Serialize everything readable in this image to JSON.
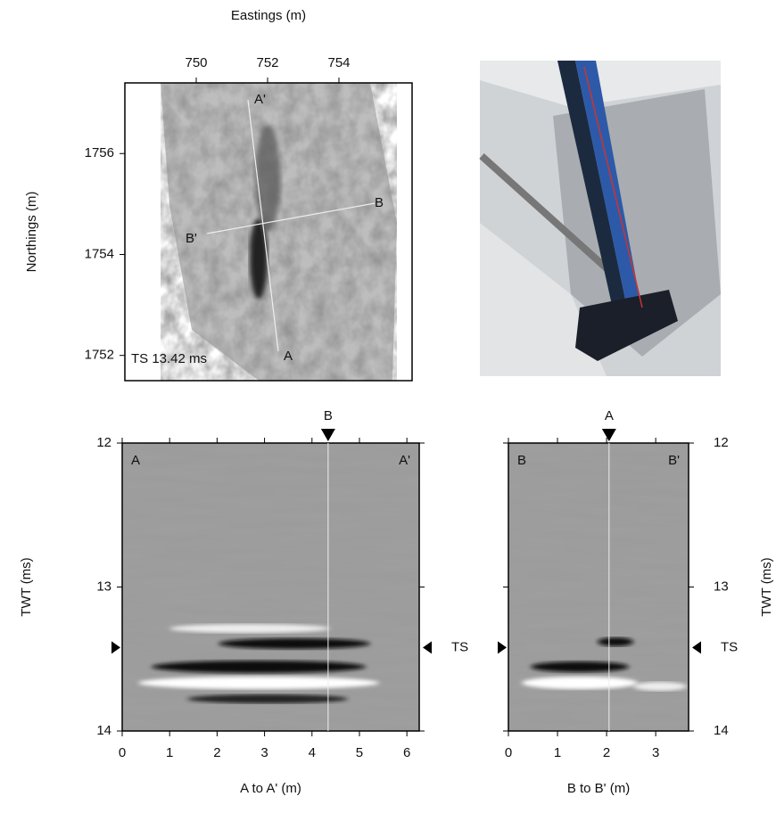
{
  "map": {
    "xlabel": "Eastings (m)",
    "ylabel": "Northings (m)",
    "xlim": [
      748,
      756.05
    ],
    "xticks": [
      750,
      752,
      754
    ],
    "ylim": [
      1751.5,
      1757.4
    ],
    "yticks": [
      1752,
      1754,
      1756
    ],
    "line_labels": [
      "A'",
      "B",
      "B'",
      "A"
    ],
    "caption": "TS 13.42 ms"
  },
  "profiles": [
    {
      "xlabel": "A to A' (m)",
      "ylabel": "TWT (ms)",
      "xlim": [
        0,
        6.26
      ],
      "xticks": [
        0,
        1,
        2,
        3,
        4,
        5,
        6
      ],
      "ylim": [
        12,
        14
      ],
      "yticks": [
        12,
        13,
        14
      ],
      "start": "A",
      "end": "A'",
      "cross": "B",
      "cross_at": 4.34,
      "marker": "TS",
      "marker_at": 13.42
    },
    {
      "xlabel": "B to B' (m)",
      "ylabel": "TWT (ms)",
      "xlim": [
        0,
        3.67
      ],
      "xticks": [
        0,
        1,
        2,
        3
      ],
      "ylim": [
        12,
        14
      ],
      "yticks": [
        12,
        13,
        14
      ],
      "start": "B",
      "end": "B'",
      "cross": "A",
      "cross_at": 2.05,
      "marker": "TS",
      "marker_at": 13.42
    }
  ]
}
